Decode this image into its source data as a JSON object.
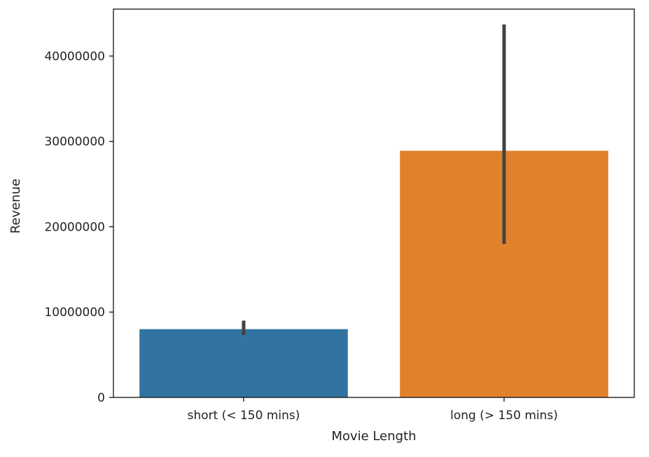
{
  "chart_data": {
    "type": "bar",
    "title": "",
    "xlabel": "Movie Length",
    "ylabel": "Revenue",
    "categories": [
      "short (< 150 mins)",
      "long (> 150 mins)"
    ],
    "values": [
      8000000,
      28900000
    ],
    "error_bars": [
      {
        "low": 7300000,
        "high": 9000000
      },
      {
        "low": 18000000,
        "high": 43700000
      }
    ],
    "colors": [
      "#3274a1",
      "#e1812c"
    ],
    "error_color": "#424242",
    "ylim": [
      0,
      45500000
    ],
    "yticks": [
      0,
      10000000,
      20000000,
      30000000,
      40000000
    ],
    "ytick_labels": [
      "0",
      "10000000",
      "20000000",
      "30000000",
      "40000000"
    ],
    "grid": false,
    "legend": "none"
  }
}
